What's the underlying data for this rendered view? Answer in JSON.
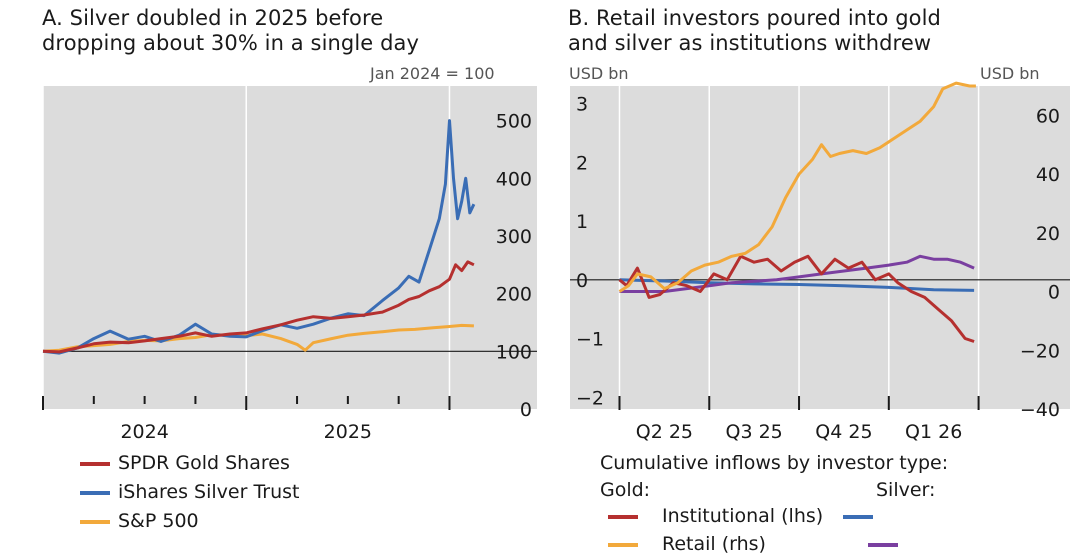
{
  "panel_a": {
    "title": "A. Silver doubled in 2025 before\ndropping about 30% in a single day",
    "unit_label": "Jan 2024 = 100",
    "legend": [
      {
        "label": "SPDR Gold Shares",
        "color": "#b5302f"
      },
      {
        "label": "iShares Silver Trust",
        "color": "#3a6db5"
      },
      {
        "label": "S&P 500",
        "color": "#f2a93b"
      }
    ]
  },
  "panel_b": {
    "title": "B. Retail investors poured into gold\nand silver as institutions withdrew",
    "lhs_unit": "USD bn",
    "rhs_unit": "USD bn",
    "legend_title": "Cumulative inflows by investor type:",
    "gold_header": "Gold:",
    "silver_header": "Silver:",
    "legend_rows": [
      {
        "label": "Institutional (lhs)",
        "gold_color": "#b5302f",
        "silver_color": "#3a6db5"
      },
      {
        "label": "Retail (rhs)",
        "gold_color": "#f2a93b",
        "silver_color": "#7a3fa0"
      }
    ]
  },
  "chart_data": [
    {
      "type": "line",
      "title": "A. Silver doubled in 2025 before dropping about 30% in a single day",
      "ylabel": "Jan 2024 = 100",
      "ylim": [
        0,
        560
      ],
      "yticks": [
        0,
        100,
        200,
        300,
        400,
        500
      ],
      "xlim": [
        2024.0,
        2026.16
      ],
      "xtick_labels": [
        {
          "x": 2024.5,
          "label": "2024"
        },
        {
          "x": 2025.5,
          "label": "2025"
        }
      ],
      "year_boundaries": [
        2024.0,
        2025.0,
        2026.0
      ],
      "baseline": 100,
      "series": [
        {
          "name": "SPDR Gold Shares",
          "color": "#b5302f",
          "x": [
            2024.0,
            2024.08,
            2024.17,
            2024.25,
            2024.33,
            2024.42,
            2024.5,
            2024.58,
            2024.67,
            2024.75,
            2024.83,
            2024.92,
            2025.0,
            2025.08,
            2025.17,
            2025.25,
            2025.33,
            2025.42,
            2025.5,
            2025.58,
            2025.67,
            2025.75,
            2025.8,
            2025.85,
            2025.9,
            2025.95,
            2026.0,
            2026.03,
            2026.06,
            2026.09,
            2026.12
          ],
          "y": [
            100,
            99,
            106,
            113,
            116,
            115,
            118,
            122,
            126,
            132,
            126,
            130,
            132,
            139,
            146,
            154,
            160,
            157,
            160,
            163,
            168,
            180,
            190,
            195,
            205,
            212,
            225,
            250,
            240,
            255,
            250
          ]
        },
        {
          "name": "iShares Silver Trust",
          "color": "#3a6db5",
          "x": [
            2024.0,
            2024.08,
            2024.17,
            2024.25,
            2024.33,
            2024.42,
            2024.5,
            2024.58,
            2024.67,
            2024.75,
            2024.83,
            2024.92,
            2025.0,
            2025.08,
            2025.17,
            2025.25,
            2025.33,
            2025.42,
            2025.5,
            2025.58,
            2025.67,
            2025.75,
            2025.8,
            2025.85,
            2025.9,
            2025.95,
            2025.98,
            2026.0,
            2026.02,
            2026.04,
            2026.06,
            2026.08,
            2026.1,
            2026.12
          ],
          "y": [
            100,
            97,
            106,
            122,
            135,
            121,
            126,
            117,
            128,
            147,
            130,
            126,
            125,
            136,
            146,
            140,
            147,
            158,
            165,
            162,
            188,
            210,
            230,
            220,
            275,
            330,
            390,
            500,
            400,
            330,
            360,
            400,
            340,
            355
          ]
        },
        {
          "name": "S&P 500",
          "color": "#f2a93b",
          "x": [
            2024.0,
            2024.08,
            2024.17,
            2024.25,
            2024.33,
            2024.42,
            2024.5,
            2024.58,
            2024.67,
            2024.75,
            2024.83,
            2024.92,
            2025.0,
            2025.08,
            2025.17,
            2025.25,
            2025.29,
            2025.33,
            2025.42,
            2025.5,
            2025.58,
            2025.67,
            2025.75,
            2025.83,
            2025.92,
            2026.0,
            2026.06,
            2026.12
          ],
          "y": [
            100,
            102,
            108,
            110,
            112,
            117,
            119,
            118,
            122,
            124,
            129,
            128,
            127,
            130,
            122,
            112,
            102,
            115,
            122,
            128,
            131,
            134,
            137,
            138,
            141,
            143,
            145,
            144
          ]
        }
      ]
    },
    {
      "type": "line",
      "title": "B. Retail investors poured into gold and silver as institutions withdrew",
      "ylabel_lhs": "USD bn",
      "ylabel_rhs": "USD bn",
      "ylim_lhs": [
        -2.2,
        3.3
      ],
      "ylim_rhs": [
        -40,
        70
      ],
      "yticks_lhs": [
        -2,
        -1,
        0,
        1,
        2,
        3
      ],
      "yticks_rhs": [
        -40,
        -20,
        0,
        20,
        40,
        60
      ],
      "xlim": [
        -0.05,
        4.35
      ],
      "quarter_boundaries": [
        0,
        1,
        2,
        3,
        4
      ],
      "xtick_labels": [
        {
          "x": 0.5,
          "label": "Q2 25"
        },
        {
          "x": 1.5,
          "label": "Q3 25"
        },
        {
          "x": 2.5,
          "label": "Q4 25"
        },
        {
          "x": 3.5,
          "label": "Q1 26"
        }
      ],
      "series": [
        {
          "name": "Gold Institutional (lhs)",
          "color": "#b5302f",
          "axis": "lhs",
          "x": [
            0,
            0.08,
            0.2,
            0.33,
            0.45,
            0.6,
            0.75,
            0.9,
            1.05,
            1.2,
            1.35,
            1.5,
            1.65,
            1.8,
            1.95,
            2.1,
            2.25,
            2.4,
            2.55,
            2.7,
            2.85,
            3.0,
            3.1,
            3.25,
            3.4,
            3.55,
            3.7,
            3.85,
            3.95
          ],
          "y": [
            0,
            -0.1,
            0.2,
            -0.3,
            -0.25,
            -0.05,
            -0.1,
            -0.2,
            0.1,
            0.0,
            0.4,
            0.3,
            0.35,
            0.15,
            0.3,
            0.4,
            0.1,
            0.35,
            0.2,
            0.3,
            0.0,
            0.1,
            -0.05,
            -0.2,
            -0.3,
            -0.5,
            -0.7,
            -1.0,
            -1.05
          ]
        },
        {
          "name": "Gold Retail (rhs)",
          "color": "#f2a93b",
          "axis": "rhs",
          "x": [
            0,
            0.1,
            0.2,
            0.35,
            0.5,
            0.65,
            0.8,
            0.95,
            1.1,
            1.25,
            1.4,
            1.55,
            1.7,
            1.85,
            2.0,
            2.15,
            2.25,
            2.35,
            2.45,
            2.6,
            2.75,
            2.9,
            3.05,
            3.2,
            3.35,
            3.5,
            3.6,
            3.75,
            3.9,
            3.97
          ],
          "y": [
            0,
            2,
            6,
            5,
            1,
            3,
            7,
            9,
            10,
            12,
            13,
            16,
            22,
            32,
            40,
            45,
            50,
            46,
            47,
            48,
            47,
            49,
            52,
            55,
            58,
            63,
            69,
            71,
            70,
            70
          ]
        },
        {
          "name": "Silver Institutional (lhs)",
          "color": "#3a6db5",
          "axis": "lhs",
          "x": [
            0,
            0.5,
            1.0,
            1.5,
            2.0,
            2.5,
            3.0,
            3.5,
            3.95
          ],
          "y": [
            0,
            -0.02,
            -0.05,
            -0.07,
            -0.08,
            -0.1,
            -0.13,
            -0.17,
            -0.18
          ]
        },
        {
          "name": "Silver Retail (rhs)",
          "color": "#7a3fa0",
          "axis": "rhs",
          "x": [
            0,
            0.25,
            0.5,
            0.75,
            1.0,
            1.25,
            1.5,
            1.75,
            2.0,
            2.25,
            2.5,
            2.75,
            3.0,
            3.2,
            3.35,
            3.5,
            3.65,
            3.8,
            3.95
          ],
          "y": [
            0,
            0,
            0,
            1,
            2,
            3,
            3.5,
            4,
            5,
            6,
            7,
            8,
            9,
            10,
            12,
            11,
            11,
            10,
            8
          ]
        }
      ]
    }
  ]
}
